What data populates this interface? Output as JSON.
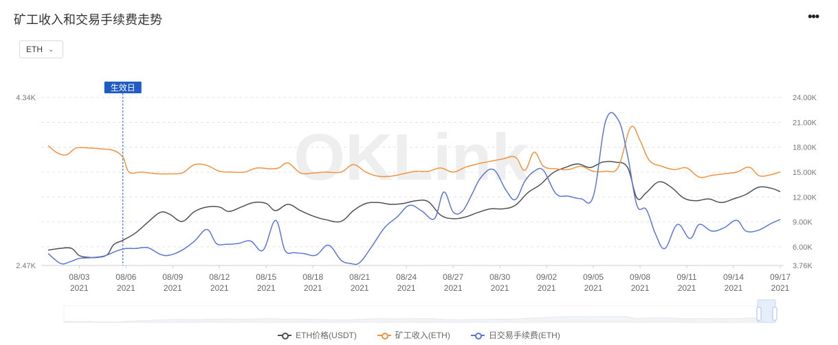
{
  "header": {
    "title": "矿工收入和交易手续费走势",
    "more_icon": "more-dots-icon",
    "more_label": "•••"
  },
  "filter": {
    "selected": "ETH",
    "chevron_icon": "chevron-down-icon"
  },
  "watermark": "OKLink",
  "colors": {
    "price": "#4d4d55",
    "income": "#f2913d",
    "fee": "#5a74d4",
    "marker": "#1f5cc4"
  },
  "chart_data": {
    "type": "line",
    "marker_label": "生效日",
    "marker_x": 4.8,
    "x_tick_labels": [
      {
        "top": "08/03",
        "bottom": "2021"
      },
      {
        "top": "08/06",
        "bottom": "2021"
      },
      {
        "top": "08/09",
        "bottom": "2021"
      },
      {
        "top": "08/12",
        "bottom": "2021"
      },
      {
        "top": "08/15",
        "bottom": "2021"
      },
      {
        "top": "08/18",
        "bottom": "2021"
      },
      {
        "top": "08/21",
        "bottom": "2021"
      },
      {
        "top": "08/24",
        "bottom": "2021"
      },
      {
        "top": "08/27",
        "bottom": "2021"
      },
      {
        "top": "08/30",
        "bottom": "2021"
      },
      {
        "top": "09/02",
        "bottom": "2021"
      },
      {
        "top": "09/05",
        "bottom": "2021"
      },
      {
        "top": "09/08",
        "bottom": "2021"
      },
      {
        "top": "09/11",
        "bottom": "2021"
      },
      {
        "top": "09/14",
        "bottom": "2021"
      },
      {
        "top": "09/17",
        "bottom": "2021"
      }
    ],
    "x_ticks": [
      2,
      5,
      8,
      11,
      14,
      17,
      20,
      23,
      26,
      29,
      32,
      35,
      38,
      41,
      44,
      47
    ],
    "xlim": [
      0,
      47
    ],
    "left_axis": {
      "min": 2470,
      "max": 4340,
      "tick_labels": [
        "2.47K",
        "4.34K"
      ]
    },
    "right_axis": {
      "min": 3760,
      "max": 24000,
      "ticks": [
        3760,
        6000,
        9000,
        12000,
        15000,
        18000,
        21000,
        24000
      ],
      "tick_labels": [
        "3.76K",
        "6.00K",
        "9.00K",
        "12.00K",
        "15.00K",
        "18.00K",
        "21.00K",
        "24.00K"
      ]
    },
    "grid": true,
    "legend_position": "bottom",
    "series": [
      {
        "name": "ETH价格(USDT)",
        "axis": "left",
        "x": [
          0,
          0.8,
          1.5,
          2,
          2.6,
          3.2,
          3.8,
          4.2,
          4.8,
          5.6,
          6.4,
          7.2,
          7.8,
          8.6,
          9.4,
          10.2,
          11,
          11.6,
          12.4,
          13.2,
          14,
          14.6,
          15.4,
          16.2,
          17,
          17.8,
          18.8,
          19.6,
          20.4,
          21.2,
          22,
          22.8,
          23.6,
          24.4,
          25.2,
          26,
          26.8,
          27.6,
          28.4,
          29.2,
          30,
          30.8,
          31.6,
          32.4,
          33.2,
          34,
          34.8,
          35.6,
          36.4,
          37.2,
          37.8,
          38.4,
          39.2,
          40,
          40.8,
          41.6,
          42.4,
          43.2,
          44,
          44.8,
          45.6,
          46.4,
          47
        ],
        "y": [
          2640,
          2660,
          2660,
          2580,
          2560,
          2560,
          2590,
          2700,
          2750,
          2830,
          2950,
          3060,
          3040,
          2960,
          3070,
          3120,
          3120,
          3070,
          3120,
          3170,
          3160,
          3080,
          3150,
          3080,
          3020,
          2980,
          2960,
          3080,
          3160,
          3170,
          3150,
          3160,
          3190,
          3180,
          3030,
          2990,
          3010,
          3060,
          3100,
          3100,
          3140,
          3280,
          3370,
          3500,
          3560,
          3600,
          3560,
          3620,
          3620,
          3560,
          3220,
          3280,
          3400,
          3340,
          3220,
          3190,
          3210,
          3170,
          3210,
          3260,
          3340,
          3330,
          3290
        ]
      },
      {
        "name": "矿工收入(ETH)",
        "axis": "right",
        "x": [
          0,
          0.6,
          1.2,
          1.8,
          2.6,
          3.4,
          4.2,
          4.8,
          5.2,
          6,
          7,
          7.8,
          8.6,
          9.4,
          10.2,
          11,
          11.8,
          12.6,
          13.4,
          14.2,
          14.8,
          15.4,
          16.2,
          17,
          17.8,
          18.8,
          19.6,
          20.4,
          21.2,
          22,
          22.8,
          23.6,
          24.4,
          25.2,
          26,
          26.8,
          27.6,
          28.4,
          29.2,
          30,
          30.6,
          31.2,
          31.8,
          32.6,
          33.4,
          34.2,
          35,
          35.8,
          36.6,
          37.4,
          38,
          38.6,
          39.4,
          40.2,
          41,
          41.8,
          42.6,
          43.4,
          44.2,
          45,
          45.6,
          46.2,
          47
        ],
        "y": [
          18200,
          17300,
          17100,
          17900,
          17900,
          17800,
          17600,
          16800,
          15000,
          15000,
          14800,
          14800,
          14900,
          15900,
          15800,
          15100,
          15000,
          15000,
          15500,
          15400,
          15500,
          16100,
          14900,
          14900,
          15000,
          15000,
          15900,
          15000,
          14500,
          14500,
          14800,
          15100,
          15100,
          15500,
          15000,
          15600,
          16000,
          16300,
          16600,
          16800,
          15200,
          17400,
          15700,
          15400,
          15300,
          15700,
          15100,
          15100,
          15600,
          20400,
          18800,
          16400,
          15700,
          15300,
          15500,
          14400,
          14600,
          14800,
          15000,
          15600,
          14600,
          14600,
          15000
        ]
      },
      {
        "name": "日交易手续费(ETH)",
        "axis": "right",
        "x": [
          0,
          0.8,
          1.4,
          2,
          2.8,
          3.6,
          4.4,
          5,
          5.6,
          6.4,
          7.2,
          7.8,
          8.6,
          9.4,
          10.2,
          10.8,
          11.4,
          12.2,
          13,
          13.8,
          14.6,
          15.2,
          15.8,
          16.4,
          17.2,
          18,
          18.8,
          19.4,
          20,
          20.8,
          21.6,
          22.4,
          23.2,
          24,
          24.8,
          25.4,
          26,
          26.6,
          27.2,
          27.8,
          28.6,
          29.4,
          30,
          30.6,
          31.2,
          31.8,
          32.6,
          33.4,
          34.2,
          35,
          35.8,
          36.6,
          37.2,
          37.8,
          38.4,
          39,
          39.6,
          40.4,
          41.2,
          41.8,
          42.6,
          43.4,
          44.2,
          44.8,
          45.6,
          46.4,
          47
        ],
        "y": [
          5200,
          4000,
          4200,
          4600,
          4700,
          4900,
          5500,
          5800,
          5800,
          5900,
          5100,
          5000,
          5600,
          6700,
          8100,
          6400,
          6300,
          6400,
          6700,
          5600,
          9200,
          5600,
          5300,
          5200,
          5000,
          6200,
          4400,
          4000,
          4100,
          6100,
          8300,
          9600,
          11000,
          10300,
          9400,
          12600,
          10200,
          10300,
          12300,
          14400,
          15300,
          12800,
          11700,
          13900,
          15100,
          15200,
          12400,
          12100,
          11800,
          12100,
          21200,
          21300,
          17000,
          11000,
          10500,
          7500,
          5800,
          8700,
          7000,
          8700,
          7900,
          8300,
          9200,
          7900,
          8000,
          8800,
          9300
        ]
      }
    ]
  }
}
